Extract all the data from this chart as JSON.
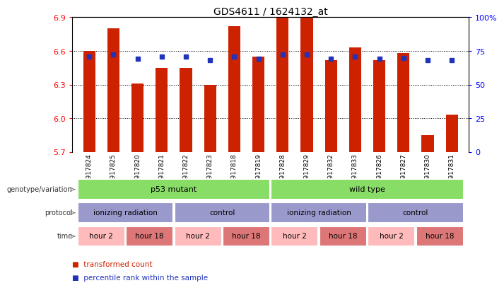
{
  "title": "GDS4611 / 1624132_at",
  "samples": [
    "GSM917824",
    "GSM917825",
    "GSM917820",
    "GSM917821",
    "GSM917822",
    "GSM917823",
    "GSM917818",
    "GSM917819",
    "GSM917828",
    "GSM917829",
    "GSM917832",
    "GSM917833",
    "GSM917826",
    "GSM917827",
    "GSM917830",
    "GSM917831"
  ],
  "bar_values": [
    6.6,
    6.8,
    6.31,
    6.45,
    6.45,
    6.3,
    6.82,
    6.55,
    6.9,
    6.9,
    6.52,
    6.63,
    6.52,
    6.58,
    5.85,
    6.03
  ],
  "dot_values": [
    6.55,
    6.57,
    6.53,
    6.55,
    6.55,
    6.52,
    6.55,
    6.53,
    6.57,
    6.57,
    6.53,
    6.55,
    6.53,
    6.54,
    6.52,
    6.52
  ],
  "ymin": 5.7,
  "ymax": 6.9,
  "yticks": [
    5.7,
    6.0,
    6.3,
    6.6,
    6.9
  ],
  "right_ytick_vals": [
    0,
    25,
    50,
    75,
    100
  ],
  "right_ytick_labels": [
    "0",
    "25",
    "50",
    "75",
    "100%"
  ],
  "bar_color": "#cc2200",
  "dot_color": "#2233bb",
  "genotype_color": "#88dd66",
  "protocol_color": "#9999cc",
  "time_color_light": "#ffbbbb",
  "time_color_dark": "#dd7777",
  "row_label_color": "#333333",
  "legend_bar_color": "#cc2200",
  "legend_dot_color": "#2233bb"
}
